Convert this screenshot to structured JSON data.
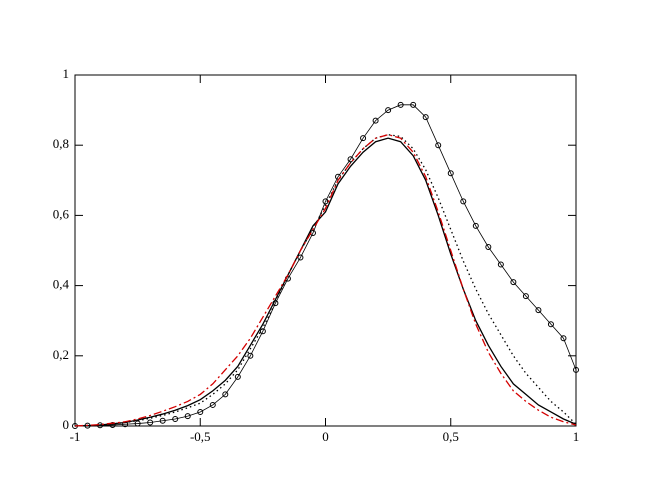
{
  "chart_data": {
    "type": "line",
    "x": [
      -1,
      -0.95,
      -0.9,
      -0.85,
      -0.8,
      -0.75,
      -0.7,
      -0.65,
      -0.6,
      -0.55,
      -0.5,
      -0.45,
      -0.4,
      -0.35,
      -0.3,
      -0.25,
      -0.2,
      -0.15,
      -0.1,
      -0.05,
      0,
      0.05,
      0.1,
      0.15,
      0.2,
      0.25,
      0.3,
      0.35,
      0.4,
      0.45,
      0.5,
      0.55,
      0.6,
      0.65,
      0.7,
      0.75,
      0.8,
      0.85,
      0.9,
      0.95,
      1
    ],
    "series": [
      {
        "color": "#000000",
        "style": "circles",
        "values": [
          0,
          0.001,
          0.002,
          0.003,
          0.005,
          0.007,
          0.01,
          0.015,
          0.02,
          0.028,
          0.04,
          0.06,
          0.09,
          0.14,
          0.2,
          0.27,
          0.35,
          0.42,
          0.48,
          0.55,
          0.64,
          0.71,
          0.76,
          0.82,
          0.87,
          0.9,
          0.915,
          0.915,
          0.88,
          0.8,
          0.72,
          0.64,
          0.57,
          0.51,
          0.46,
          0.41,
          0.37,
          0.33,
          0.29,
          0.25,
          0.16
        ]
      },
      {
        "color": "#000000",
        "style": "solid",
        "values": [
          0,
          0.001,
          0.003,
          0.006,
          0.01,
          0.017,
          0.025,
          0.034,
          0.045,
          0.058,
          0.075,
          0.1,
          0.13,
          0.17,
          0.23,
          0.29,
          0.36,
          0.43,
          0.5,
          0.57,
          0.61,
          0.69,
          0.74,
          0.78,
          0.81,
          0.82,
          0.81,
          0.77,
          0.7,
          0.6,
          0.49,
          0.39,
          0.3,
          0.23,
          0.17,
          0.12,
          0.09,
          0.06,
          0.04,
          0.02,
          0.005
        ]
      },
      {
        "color": "#000000",
        "style": "dotted",
        "values": [
          0,
          0.001,
          0.003,
          0.006,
          0.01,
          0.015,
          0.022,
          0.03,
          0.04,
          0.052,
          0.065,
          0.09,
          0.12,
          0.16,
          0.22,
          0.28,
          0.35,
          0.43,
          0.5,
          0.56,
          0.63,
          0.7,
          0.75,
          0.79,
          0.82,
          0.83,
          0.825,
          0.79,
          0.73,
          0.65,
          0.56,
          0.47,
          0.39,
          0.32,
          0.26,
          0.2,
          0.15,
          0.11,
          0.07,
          0.04,
          0.005
        ]
      },
      {
        "color": "#d40000",
        "style": "dashdot",
        "values": [
          0,
          0.002,
          0.004,
          0.008,
          0.012,
          0.02,
          0.03,
          0.042,
          0.055,
          0.07,
          0.09,
          0.12,
          0.16,
          0.2,
          0.25,
          0.31,
          0.37,
          0.43,
          0.5,
          0.56,
          0.62,
          0.7,
          0.75,
          0.79,
          0.82,
          0.83,
          0.82,
          0.78,
          0.71,
          0.61,
          0.5,
          0.39,
          0.29,
          0.21,
          0.15,
          0.1,
          0.07,
          0.045,
          0.025,
          0.012,
          0.003
        ]
      }
    ],
    "xlim": [
      -1,
      1
    ],
    "ylim": [
      0,
      1
    ],
    "xticks": [
      -1,
      {
        "value": -0.5,
        "label": "-0,5"
      },
      0,
      {
        "value": 0.5,
        "label": "0,5"
      },
      1
    ],
    "yticks": [
      0,
      {
        "value": 0.2,
        "label": "0,2"
      },
      {
        "value": 0.4,
        "label": "0,4"
      },
      {
        "value": 0.6,
        "label": "0,6"
      },
      {
        "value": 0.8,
        "label": "0,8"
      },
      1
    ]
  }
}
